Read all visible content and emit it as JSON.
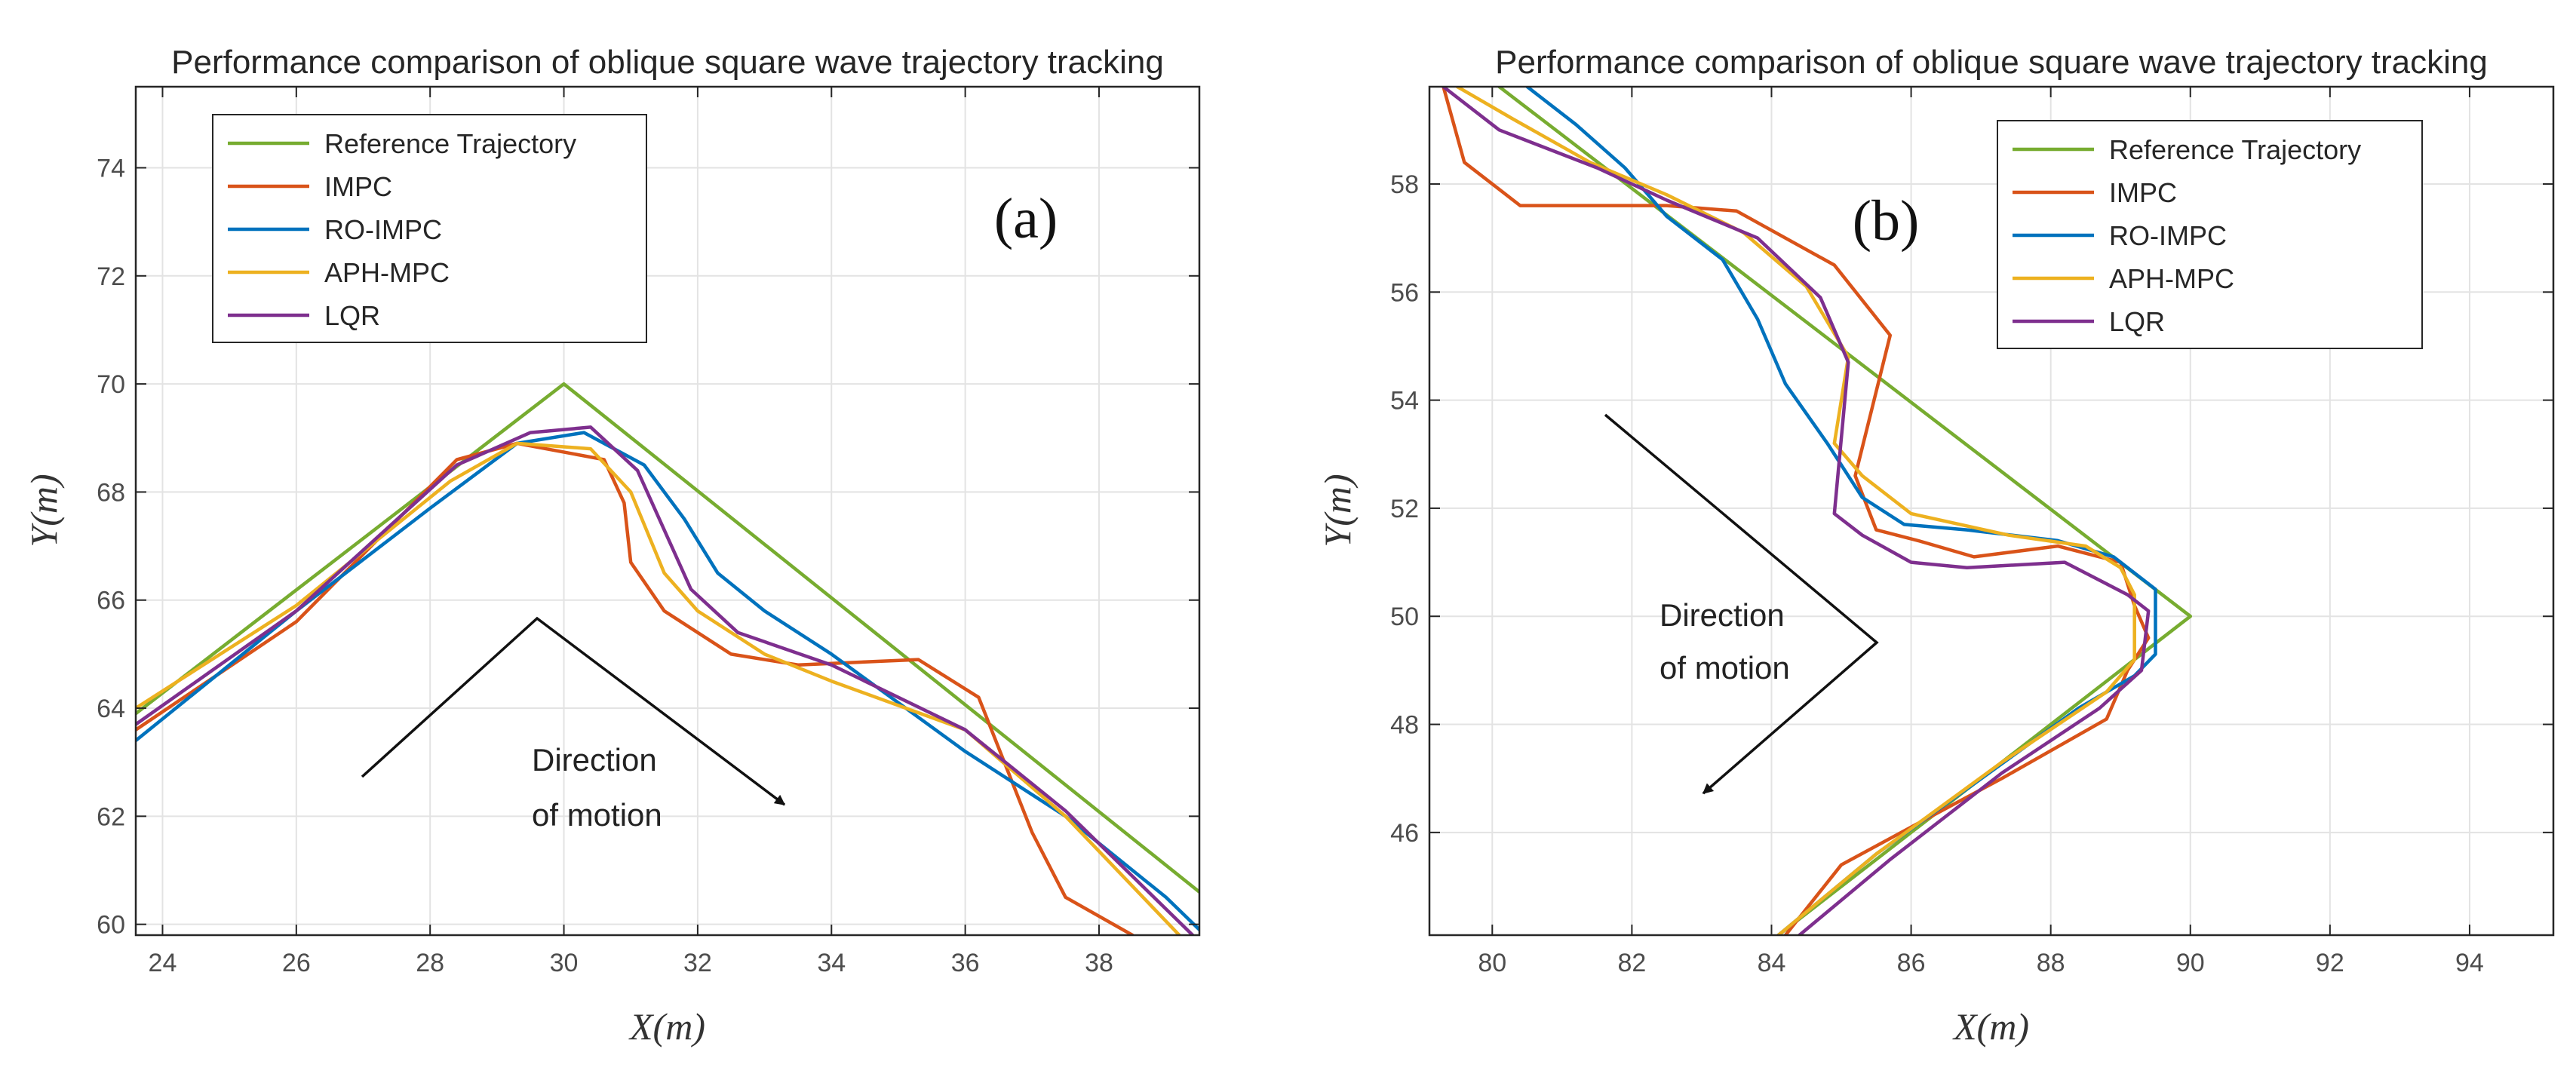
{
  "chart_data": [
    {
      "type": "line",
      "panel_label": "(a)",
      "title": "Performance comparison of oblique square wave trajectory tracking",
      "xlabel": "X(m)",
      "ylabel": "Y(m)",
      "xlim": [
        23.6,
        39.5
      ],
      "ylim": [
        59.8,
        75.5
      ],
      "xticks": [
        24,
        26,
        28,
        30,
        32,
        34,
        36,
        38
      ],
      "yticks": [
        60,
        62,
        64,
        66,
        68,
        70,
        72,
        74
      ],
      "grid": true,
      "legend_location": "top-left",
      "annotation": [
        "Direction",
        "of motion"
      ],
      "series": [
        {
          "name": "Reference Trajectory",
          "color": "#77ac30",
          "x": [
            23.6,
            30,
            39.5
          ],
          "y": [
            63.9,
            70,
            60.6
          ]
        },
        {
          "name": "IMPC",
          "color": "#d95319",
          "x": [
            23.6,
            26,
            28.4,
            29.3,
            30.6,
            30.9,
            31,
            31.5,
            32.5,
            33.5,
            35.3,
            36.2,
            37,
            37.5,
            38.5
          ],
          "y": [
            63.6,
            65.6,
            68.6,
            68.9,
            68.6,
            67.8,
            66.7,
            65.8,
            65.0,
            64.8,
            64.9,
            64.2,
            61.7,
            60.5,
            59.8
          ]
        },
        {
          "name": "RO-IMPC",
          "color": "#0072bd",
          "x": [
            23.6,
            26,
            28,
            29.3,
            30.3,
            31.2,
            31.8,
            32.3,
            33,
            34,
            36,
            37.5,
            39,
            39.5
          ],
          "y": [
            63.4,
            65.8,
            67.7,
            68.9,
            69.1,
            68.5,
            67.5,
            66.5,
            65.8,
            65.0,
            63.2,
            62.0,
            60.5,
            59.9
          ]
        },
        {
          "name": "APH-MPC",
          "color": "#edb120",
          "x": [
            23.6,
            26,
            28.3,
            29.3,
            30.4,
            31,
            31.5,
            32,
            33,
            34,
            36,
            37.5,
            39.2
          ],
          "y": [
            64.0,
            65.9,
            68.2,
            68.9,
            68.8,
            68.0,
            66.5,
            65.8,
            65.0,
            64.5,
            63.6,
            62.0,
            59.8
          ]
        },
        {
          "name": "LQR",
          "color": "#7e2f8e",
          "x": [
            23.6,
            26,
            28.4,
            29.5,
            30.4,
            31.1,
            31.9,
            32.6,
            34,
            36,
            37.5,
            39.4
          ],
          "y": [
            63.7,
            65.8,
            68.5,
            69.1,
            69.2,
            68.4,
            66.2,
            65.4,
            64.8,
            63.6,
            62.1,
            59.8
          ]
        }
      ]
    },
    {
      "type": "line",
      "panel_label": "(b)",
      "title": "Performance comparison of oblique square wave trajectory tracking",
      "xlabel": "X(m)",
      "ylabel": "Y(m)",
      "xlim": [
        79.1,
        95.2
      ],
      "ylim": [
        44.1,
        59.8
      ],
      "xticks": [
        80,
        82,
        84,
        86,
        88,
        90,
        92,
        94
      ],
      "yticks": [
        46,
        48,
        50,
        52,
        54,
        56,
        58
      ],
      "grid": true,
      "legend_location": "top-right",
      "annotation": [
        "Direction",
        "of motion"
      ],
      "series": [
        {
          "name": "Reference Trajectory",
          "color": "#77ac30",
          "x": [
            80.1,
            90,
            84.1
          ],
          "y": [
            59.8,
            50,
            44.1
          ]
        },
        {
          "name": "IMPC",
          "color": "#d95319",
          "x": [
            79.3,
            79.6,
            80.4,
            82.5,
            83.5,
            84.9,
            85.7,
            85.2,
            85.5,
            86.1,
            86.9,
            88.1,
            89.0,
            89.2,
            89.4,
            89.1,
            88.8,
            87.3,
            86.0,
            85.0,
            84.2
          ],
          "y": [
            59.8,
            58.4,
            57.6,
            57.6,
            57.5,
            56.5,
            55.2,
            52.6,
            51.6,
            51.4,
            51.1,
            51.3,
            51.0,
            50.2,
            49.6,
            49.0,
            48.1,
            47.0,
            46.1,
            45.4,
            44.1
          ]
        },
        {
          "name": "RO-IMPC",
          "color": "#0072bd",
          "x": [
            80.5,
            81.2,
            81.9,
            82.5,
            83.3,
            83.8,
            84.2,
            84.8,
            85.3,
            85.9,
            86.8,
            88.1,
            88.9,
            89.5,
            89.5,
            89.2,
            88.4,
            86.9,
            85.5,
            84.1
          ],
          "y": [
            59.8,
            59.1,
            58.3,
            57.4,
            56.6,
            55.5,
            54.3,
            53.2,
            52.2,
            51.7,
            51.6,
            51.4,
            51.1,
            50.5,
            49.3,
            48.9,
            48.3,
            46.9,
            45.6,
            44.1
          ]
        },
        {
          "name": "APH-MPC",
          "color": "#edb120",
          "x": [
            79.5,
            80.3,
            81.4,
            82.5,
            83.6,
            84.5,
            85.1,
            84.9,
            85.3,
            86.0,
            87.4,
            88.5,
            89.0,
            89.2,
            89.2,
            88.8,
            87.3,
            85.5,
            84.1
          ],
          "y": [
            59.8,
            59.2,
            58.4,
            57.8,
            57.1,
            56.1,
            54.8,
            53.2,
            52.6,
            51.9,
            51.5,
            51.3,
            50.9,
            50.4,
            49.2,
            48.6,
            47.3,
            45.6,
            44.1
          ]
        },
        {
          "name": "LQR",
          "color": "#7e2f8e",
          "x": [
            79.3,
            80.1,
            81.5,
            82.5,
            83.8,
            84.7,
            85.1,
            84.9,
            85.3,
            86.0,
            86.8,
            88.2,
            89.1,
            89.4,
            89.3,
            88.7,
            87.3,
            85.7,
            84.4
          ],
          "y": [
            59.8,
            59.0,
            58.3,
            57.7,
            57.0,
            55.9,
            54.7,
            51.9,
            51.5,
            51.0,
            50.9,
            51.0,
            50.4,
            50.1,
            49.0,
            48.3,
            47.1,
            45.5,
            44.1
          ]
        }
      ]
    }
  ]
}
